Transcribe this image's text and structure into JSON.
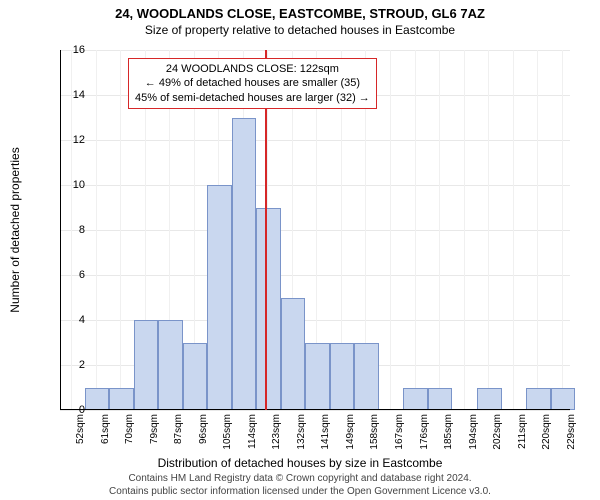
{
  "title": "24, WOODLANDS CLOSE, EASTCOMBE, STROUD, GL6 7AZ",
  "subtitle": "Size of property relative to detached houses in Eastcombe",
  "ylabel": "Number of detached properties",
  "xlabel": "Distribution of detached houses by size in Eastcombe",
  "footer_line1": "Contains HM Land Registry data © Crown copyright and database right 2024.",
  "footer_line2": "Contains public sector information licensed under the Open Government Licence v3.0.",
  "annotation": {
    "line1": "24 WOODLANDS CLOSE: 122sqm",
    "line2": "← 49% of detached houses are smaller (35)",
    "line3": "45% of semi-detached houses are larger (32) →",
    "box_border_color": "#d62728"
  },
  "chart": {
    "type": "histogram",
    "bar_fill": "#c9d7ef",
    "bar_border": "#7a94c9",
    "background": "#ffffff",
    "grid_color": "#e8e8e8",
    "marker_color": "#d62728",
    "marker_value_sqm": 122,
    "x_min_sqm": 48,
    "x_max_sqm": 232,
    "y_max": 16,
    "y_tick_step": 2,
    "x_tick_start": 52,
    "x_tick_step": 8.85,
    "x_tick_count": 21,
    "x_tick_suffix": "sqm",
    "bin_width_sqm": 8.85,
    "bins": [
      {
        "start": 48,
        "count": 0
      },
      {
        "start": 56.85,
        "count": 1
      },
      {
        "start": 65.7,
        "count": 1
      },
      {
        "start": 74.55,
        "count": 4
      },
      {
        "start": 83.4,
        "count": 4
      },
      {
        "start": 92.25,
        "count": 3
      },
      {
        "start": 101.1,
        "count": 10
      },
      {
        "start": 109.95,
        "count": 13
      },
      {
        "start": 118.8,
        "count": 9
      },
      {
        "start": 127.65,
        "count": 5
      },
      {
        "start": 136.5,
        "count": 3
      },
      {
        "start": 145.35,
        "count": 3
      },
      {
        "start": 154.2,
        "count": 3
      },
      {
        "start": 163.05,
        "count": 0
      },
      {
        "start": 171.9,
        "count": 1
      },
      {
        "start": 180.75,
        "count": 1
      },
      {
        "start": 189.6,
        "count": 0
      },
      {
        "start": 198.45,
        "count": 1
      },
      {
        "start": 207.3,
        "count": 0
      },
      {
        "start": 216.15,
        "count": 1
      },
      {
        "start": 225.0,
        "count": 1
      }
    ]
  }
}
